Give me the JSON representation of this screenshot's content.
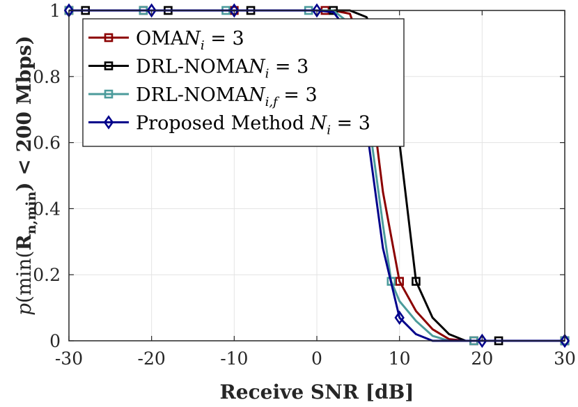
{
  "chart_data": {
    "type": "line",
    "title": "",
    "xlabel": "Receive SNR [dB]",
    "ylabel": "p(min(R_n,min) < 200 Mbps)",
    "ylabel_parts": {
      "pre": "p",
      "mid": "(min(",
      "bold": "R",
      "sub": "n,min",
      "post": ") < 200 Mbps)"
    },
    "xlim": [
      -30,
      30
    ],
    "ylim": [
      0,
      1
    ],
    "xticks": [
      -30,
      -20,
      -10,
      0,
      10,
      20,
      30
    ],
    "xtick_labels": [
      "-30",
      "-20",
      "-10",
      "0",
      "10",
      "20",
      "30"
    ],
    "yticks": [
      0,
      0.2,
      0.4,
      0.6,
      0.8,
      1
    ],
    "ytick_labels": [
      "0",
      "0.2",
      "0.4",
      "0.6",
      "0.8",
      "1"
    ],
    "grid": true,
    "legend_position": "top-left",
    "series": [
      {
        "name": "OMA  N_i = 3",
        "legend": {
          "text": "OMA",
          "math": "N",
          "sub": "i",
          "tail": " = 3"
        },
        "color": "#8b0000",
        "marker": "square",
        "x": [
          -30,
          -20,
          -10,
          0,
          2,
          4,
          6,
          8,
          10,
          12,
          14,
          16,
          18,
          20,
          30
        ],
        "y": [
          1,
          1,
          1,
          1,
          1,
          0.99,
          0.85,
          0.45,
          0.18,
          0.09,
          0.035,
          0.005,
          0,
          0,
          0
        ],
        "marker_x": [
          -30,
          -21,
          -10,
          1,
          10,
          19,
          30
        ],
        "marker_y": [
          1,
          1,
          1,
          1,
          0.18,
          0,
          0
        ]
      },
      {
        "name": "DRL-NOMA  N_i = 3",
        "legend": {
          "text": "DRL-NOMA",
          "math": "N",
          "sub": "i",
          "tail": " = 3"
        },
        "color": "#000000",
        "marker": "square",
        "x": [
          -30,
          -20,
          -10,
          0,
          2,
          4,
          6,
          8,
          10,
          12,
          14,
          16,
          18,
          20,
          30
        ],
        "y": [
          1,
          1,
          1,
          1,
          1,
          1,
          0.98,
          0.88,
          0.6,
          0.18,
          0.07,
          0.02,
          0,
          0,
          0
        ],
        "marker_x": [
          -28,
          -18,
          -8,
          2,
          12,
          22,
          30
        ],
        "marker_y": [
          1,
          1,
          1,
          1,
          0.18,
          0,
          0
        ]
      },
      {
        "name": "DRL-NOMA  N_i,f = 3",
        "legend": {
          "text": "DRL-NOMA",
          "math": "N",
          "sub": "i,f",
          "tail": " = 3"
        },
        "color": "#4b9b9b",
        "marker": "square",
        "x": [
          -30,
          -20,
          -10,
          0,
          2,
          4,
          6,
          8,
          9,
          10,
          12,
          14,
          16,
          20,
          30
        ],
        "y": [
          1,
          1,
          1,
          1,
          1,
          0.96,
          0.72,
          0.35,
          0.18,
          0.12,
          0.06,
          0.015,
          0,
          0,
          0
        ],
        "marker_x": [
          -30,
          -21,
          -11,
          -1,
          9,
          19,
          30
        ],
        "marker_y": [
          1,
          1,
          1,
          1,
          0.18,
          0,
          0
        ]
      },
      {
        "name": "Proposed Method  N_i = 3",
        "legend": {
          "text": "Proposed Method ",
          "math": "N",
          "sub": "i",
          "tail": " = 3"
        },
        "color": "#00008b",
        "marker": "diamond",
        "x": [
          -30,
          -20,
          -10,
          0,
          2,
          4,
          6,
          8,
          10,
          12,
          14,
          16,
          20,
          30
        ],
        "y": [
          1,
          1,
          1,
          1,
          0.995,
          0.93,
          0.65,
          0.28,
          0.07,
          0.02,
          0,
          0,
          0,
          0
        ],
        "marker_x": [
          -30,
          -20,
          -10,
          0,
          10,
          20,
          30
        ],
        "marker_y": [
          1,
          1,
          1,
          1,
          0.07,
          0,
          0
        ]
      }
    ]
  }
}
